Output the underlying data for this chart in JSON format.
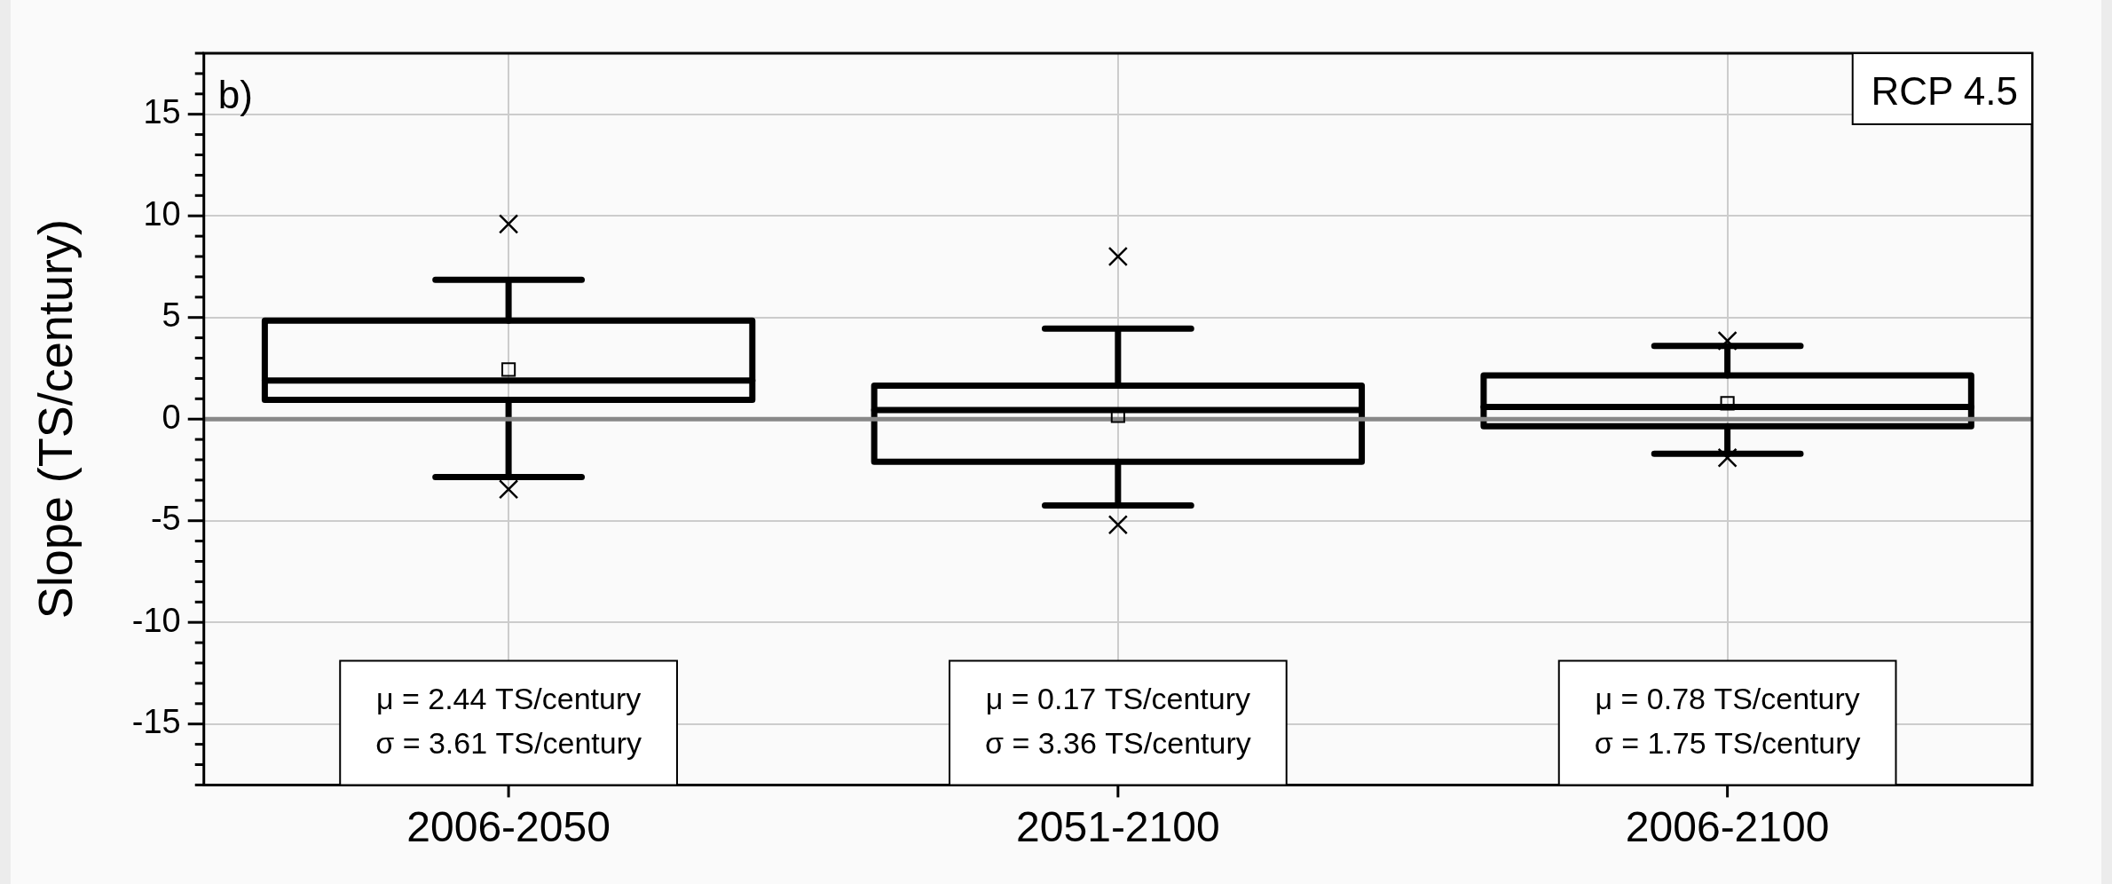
{
  "chart_data": {
    "type": "box",
    "ylabel": "Slope (TS/century)",
    "categories": [
      "2006-2050",
      "2051-2100",
      "2006-2100"
    ],
    "color": "#000000",
    "boxes": [
      {
        "low": -2.85,
        "q1": 0.95,
        "median": 1.9,
        "q3": 4.85,
        "high": 6.85,
        "mean": 2.44,
        "outliers": [
          9.6,
          -3.45
        ]
      },
      {
        "low": -4.25,
        "q1": -2.1,
        "median": 0.45,
        "q3": 1.65,
        "high": 4.45,
        "mean": 0.17,
        "outliers": [
          8.0,
          -5.2
        ]
      },
      {
        "low": -1.7,
        "q1": -0.35,
        "median": 0.6,
        "q3": 2.15,
        "high": 3.6,
        "mean": 0.78,
        "outliers": [
          3.85,
          -1.9
        ]
      }
    ],
    "ylim": [
      -18,
      18
    ],
    "yticks": [
      {
        "value": -18,
        "label": null
      },
      {
        "value": -17,
        "label": null
      },
      {
        "value": -16,
        "label": null
      },
      -15,
      {
        "value": -14,
        "label": null
      },
      {
        "value": -13,
        "label": null
      },
      {
        "value": -12,
        "label": null
      },
      {
        "value": -11,
        "label": null
      },
      -10,
      {
        "value": -9,
        "label": null
      },
      {
        "value": -8,
        "label": null
      },
      {
        "value": -7,
        "label": null
      },
      {
        "value": -6,
        "label": null
      },
      -5,
      {
        "value": -4,
        "label": null
      },
      {
        "value": -3,
        "label": null
      },
      {
        "value": -2,
        "label": null
      },
      {
        "value": -1,
        "label": null
      },
      0,
      {
        "value": 1,
        "label": null
      },
      {
        "value": 2,
        "label": null
      },
      {
        "value": 3,
        "label": null
      },
      {
        "value": 4,
        "label": null
      },
      5,
      {
        "value": 6,
        "label": null
      },
      {
        "value": 7,
        "label": null
      },
      {
        "value": 8,
        "label": null
      },
      {
        "value": 9,
        "label": null
      },
      10,
      {
        "value": 11,
        "label": null
      },
      {
        "value": 12,
        "label": null
      },
      {
        "value": 13,
        "label": null
      },
      {
        "value": 14,
        "label": null
      },
      15,
      {
        "value": 16,
        "label": null
      },
      {
        "value": 17,
        "label": null
      },
      {
        "value": 18,
        "label": null
      }
    ],
    "grid": true,
    "legend": false,
    "ref_lines": [
      {
        "axis": "y",
        "value": 0,
        "color": "#888888"
      }
    ],
    "annotations": [
      "b)",
      "RCP 4.5",
      "μ = 2.44 TS/century\nσ = 3.61 TS/century",
      "μ = 0.17 TS/century\nσ = 3.36 TS/century",
      "μ = 0.78 TS/century\nσ = 1.75 TS/century"
    ]
  }
}
